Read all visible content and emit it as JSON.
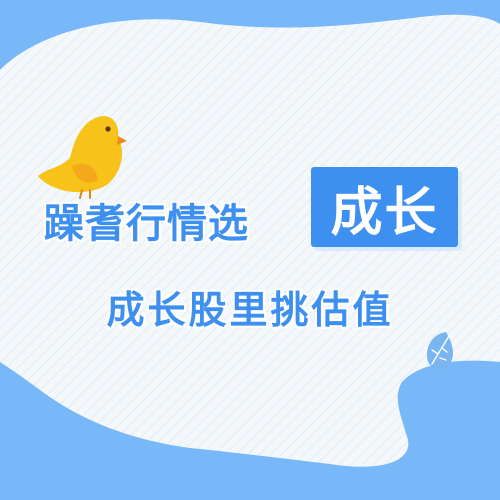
{
  "colors": {
    "frame_blue": "#78b8f8",
    "accent_blue": "#3d8ff0",
    "card_white": "#f4f8fb",
    "stripe": "#e2edf6",
    "bird_yellow": "#f7c21a",
    "bird_wing": "#f3a91b",
    "leaf_blue": "#7ab5f0"
  },
  "headline": {
    "main_text": "躁耆行情选",
    "highlight_text": "成长"
  },
  "subheadline": {
    "text": "成长股里挑估值"
  },
  "decor": {
    "bird": "yellow-bird-icon",
    "leaf": "leaf-icon"
  }
}
